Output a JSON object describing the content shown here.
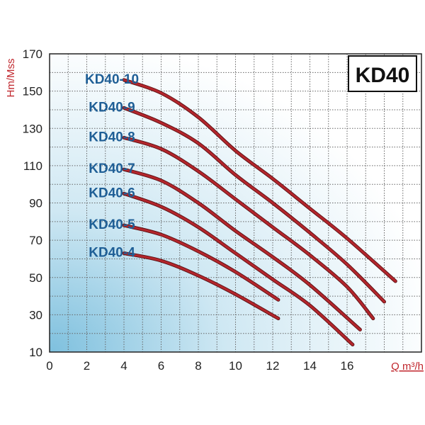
{
  "chart_data": {
    "type": "line",
    "title": "KD40",
    "xlabel": "Q m³/h",
    "ylabel": "Hm/Mss",
    "xlim": [
      0,
      20
    ],
    "ylim": [
      10,
      170
    ],
    "x_ticks": [
      "0",
      "2",
      "4",
      "6",
      "8",
      "10",
      "12",
      "14",
      "16"
    ],
    "y_ticks": [
      "10",
      "30",
      "50",
      "70",
      "90",
      "110",
      "130",
      "150",
      "170"
    ],
    "grid": true,
    "colors": {
      "curve": "#b3262c",
      "curve_shadow": "#5a0f12",
      "label": "#1f5f96",
      "axis_title": "#c0262c",
      "grid": "#666666"
    },
    "series": [
      {
        "name": "KD40-10",
        "x": [
          4,
          6,
          8,
          10,
          12,
          14,
          16,
          18.6
        ],
        "y": [
          156,
          149,
          136,
          118,
          103,
          87,
          71,
          48
        ]
      },
      {
        "name": "KD40-9",
        "x": [
          4,
          6,
          8,
          10,
          12,
          14,
          16,
          18
        ],
        "y": [
          141,
          133,
          122,
          105,
          90,
          74,
          57,
          37
        ]
      },
      {
        "name": "KD40-8",
        "x": [
          4,
          6,
          8,
          10,
          12,
          14,
          16,
          17.4
        ],
        "y": [
          125,
          119,
          107,
          92,
          77,
          62,
          45,
          28
        ]
      },
      {
        "name": "KD40-7",
        "x": [
          4,
          6,
          8,
          10,
          12,
          14,
          16.7
        ],
        "y": [
          108,
          102,
          90,
          75,
          61,
          46,
          22
        ]
      },
      {
        "name": "KD40-6",
        "x": [
          4,
          6,
          8,
          10,
          12,
          14,
          16.3
        ],
        "y": [
          95,
          88,
          77,
          63,
          49,
          35,
          14
        ]
      },
      {
        "name": "KD40-5",
        "x": [
          4,
          6,
          8,
          10,
          12.3
        ],
        "y": [
          78,
          73,
          64,
          53,
          38
        ]
      },
      {
        "name": "KD40-4",
        "x": [
          4,
          6,
          8,
          10,
          12.3
        ],
        "y": [
          63,
          59,
          51,
          41,
          28
        ]
      }
    ]
  }
}
